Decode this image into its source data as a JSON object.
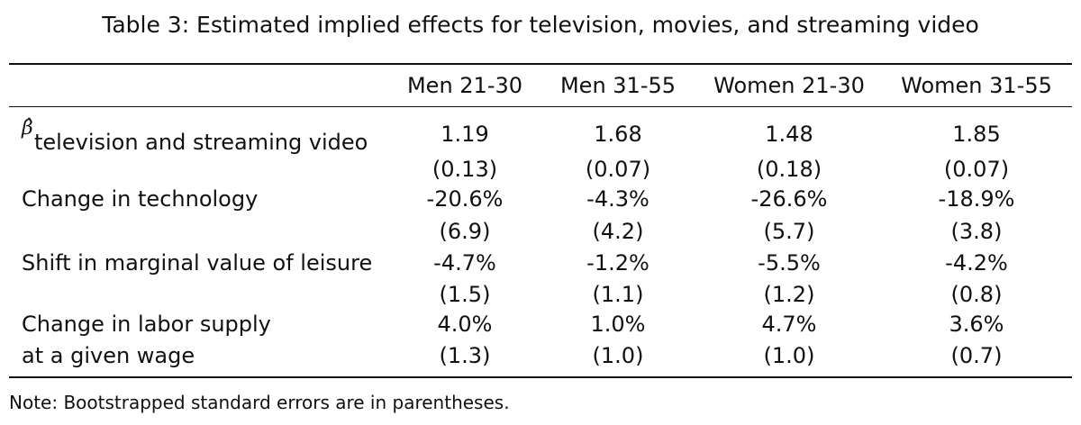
{
  "caption": "Table 3: Estimated implied effects for television, movies, and streaming video",
  "columns": [
    "Men 21-30",
    "Men 31-55",
    "Women 21-30",
    "Women 31-55"
  ],
  "rows": [
    {
      "symbol": "β̂",
      "label": "television and streaming video",
      "values": [
        "1.19",
        "1.68",
        "1.48",
        "1.85"
      ],
      "se": [
        "(0.13)",
        "(0.07)",
        "(0.18)",
        "(0.07)"
      ]
    },
    {
      "label": "Change in technology",
      "values": [
        "-20.6%",
        "-4.3%",
        "-26.6%",
        "-18.9%"
      ],
      "se": [
        "(6.9)",
        "(4.2)",
        "(5.7)",
        "(3.8)"
      ]
    },
    {
      "label": "Shift in marginal value of leisure",
      "values": [
        "-4.7%",
        "-1.2%",
        "-5.5%",
        "-4.2%"
      ],
      "se": [
        "(1.5)",
        "(1.1)",
        "(1.2)",
        "(0.8)"
      ]
    },
    {
      "label": "Change in labor supply",
      "label2": "at a given wage",
      "values": [
        "4.0%",
        "1.0%",
        "4.7%",
        "3.6%"
      ],
      "se": [
        "(1.3)",
        "(1.0)",
        "(1.0)",
        "(0.7)"
      ]
    }
  ],
  "note": "Note: Bootstrapped standard errors are in parentheses."
}
